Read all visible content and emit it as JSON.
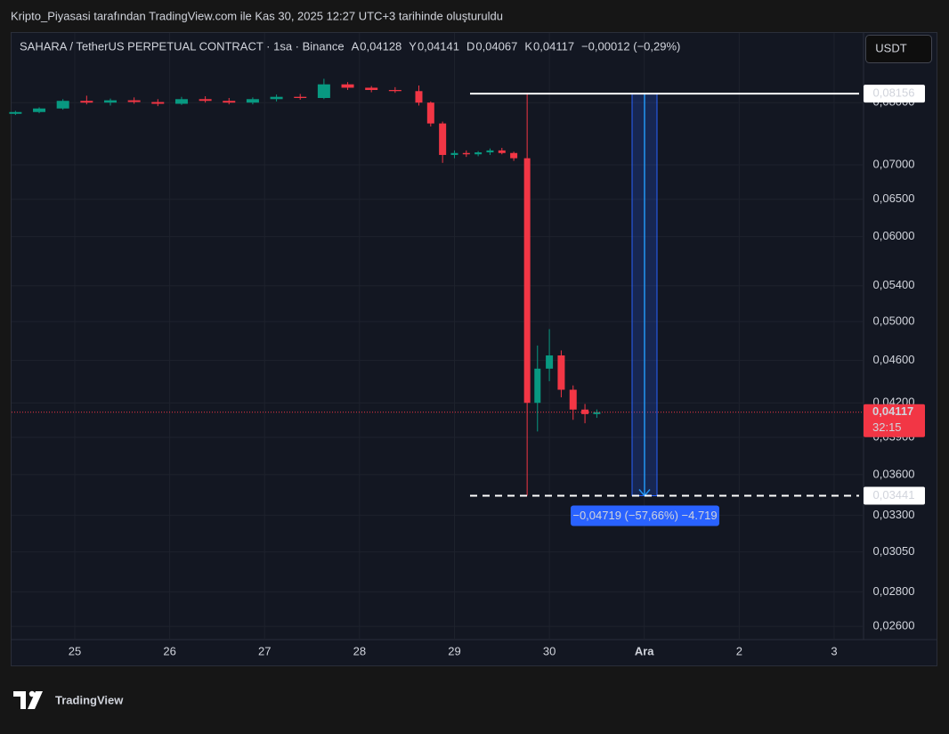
{
  "chart_data": {
    "type": "candlestick",
    "caption": "Kripto_Piyasasi tarafından TradingView.com ile Kas 30, 2025 12:27 UTC+3 tarihinde oluşturuldu",
    "title": "SAHARA / TetherUS PERPETUAL CONTRACT · 1sa · Binance",
    "legend_items": [
      {
        "label": "A",
        "value": "0,04128"
      },
      {
        "label": "Y",
        "value": "0,04141"
      },
      {
        "label": "D",
        "value": "0,04067"
      },
      {
        "label": "K",
        "value": "0,04117"
      }
    ],
    "change": "−0,00012 (−0,29%)",
    "currency": "USDT",
    "x": [
      24.375,
      24.625,
      24.875,
      25.125,
      25.375,
      25.625,
      25.875,
      26.125,
      26.375,
      26.625,
      26.875,
      27.125,
      27.375,
      27.625,
      27.875,
      28.125,
      28.375,
      28.625,
      28.75,
      28.875,
      29.0,
      29.125,
      29.25,
      29.375,
      29.5,
      29.625,
      29.766,
      29.875,
      30.0,
      30.125,
      30.25,
      30.375,
      30.5
    ],
    "open": [
      0.0781,
      0.0784,
      0.079,
      0.0803,
      0.08,
      0.0804,
      0.0801,
      0.0798,
      0.0806,
      0.0803,
      0.08,
      0.0806,
      0.081,
      0.0808,
      0.0832,
      0.0826,
      0.0822,
      0.082,
      0.08,
      0.0765,
      0.0715,
      0.0718,
      0.0716,
      0.0719,
      0.0722,
      0.0718,
      0.071,
      0.042,
      0.0452,
      0.0465,
      0.0432,
      0.0414,
      0.041
    ],
    "high": [
      0.0786,
      0.0792,
      0.0806,
      0.0812,
      0.0807,
      0.0809,
      0.0806,
      0.081,
      0.0811,
      0.0808,
      0.0809,
      0.0814,
      0.0815,
      0.0842,
      0.0836,
      0.0829,
      0.0827,
      0.083,
      0.0802,
      0.0768,
      0.0722,
      0.0722,
      0.0721,
      0.0725,
      0.0726,
      0.072,
      0.08156,
      0.0475,
      0.0492,
      0.047,
      0.0436,
      0.0419,
      0.04141
    ],
    "low": [
      0.0779,
      0.0782,
      0.0788,
      0.0797,
      0.0795,
      0.0798,
      0.0794,
      0.0796,
      0.08,
      0.0797,
      0.0797,
      0.0802,
      0.0805,
      0.0806,
      0.0822,
      0.0818,
      0.0817,
      0.0795,
      0.076,
      0.0703,
      0.071,
      0.0712,
      0.0713,
      0.0715,
      0.0716,
      0.0706,
      0.03441,
      0.0395,
      0.044,
      0.0425,
      0.0405,
      0.0402,
      0.04067
    ],
    "close": [
      0.0784,
      0.079,
      0.0803,
      0.08,
      0.0804,
      0.0801,
      0.0798,
      0.0806,
      0.0803,
      0.08,
      0.0806,
      0.081,
      0.0808,
      0.0832,
      0.0826,
      0.0822,
      0.082,
      0.08,
      0.0765,
      0.0715,
      0.0718,
      0.0716,
      0.0719,
      0.0722,
      0.0718,
      0.071,
      0.042,
      0.0452,
      0.0465,
      0.0432,
      0.0414,
      0.041,
      0.04117
    ],
    "up_color": "#089981",
    "down_color": "#f23645",
    "xlim": [
      24.334,
      33.31
    ],
    "xticks": [
      25,
      26,
      27,
      28,
      29,
      30,
      {
        "value": 31,
        "label": "Ara"
      },
      {
        "value": 32,
        "label": "2"
      },
      {
        "value": 33,
        "label": "3"
      }
    ],
    "ylim": [
      0.02527,
      0.0929
    ],
    "log_scale": true,
    "grid": true,
    "yticks": [
      {
        "value": 0.026,
        "label": "0,02600"
      },
      {
        "value": 0.028,
        "label": "0,02800"
      },
      {
        "value": 0.0305,
        "label": "0,03050"
      },
      {
        "value": 0.033,
        "label": "0,03300"
      },
      {
        "value": 0.036,
        "label": "0,03600"
      },
      {
        "value": 0.039,
        "label": "0,03900"
      },
      {
        "value": 0.042,
        "label": "0,04200"
      },
      {
        "value": 0.046,
        "label": "0,04600"
      },
      {
        "value": 0.05,
        "label": "0,05000"
      },
      {
        "value": 0.054,
        "label": "0,05400"
      },
      {
        "value": 0.06,
        "label": "0,06000"
      },
      {
        "value": 0.065,
        "label": "0,06500"
      },
      {
        "value": 0.07,
        "label": "0,07000"
      },
      {
        "value": 0.08,
        "label": "0,08000"
      }
    ],
    "price_lines": [
      {
        "value": 0.08156,
        "label": "0,08156",
        "style": "solid"
      },
      {
        "value": 0.03441,
        "label": "0,03441",
        "style": "dashed"
      }
    ],
    "last_price": {
      "value": 0.04117,
      "label": "0,04117",
      "countdown": "32:15"
    },
    "measure_label": "−0,04719 (−57,66%) −4.719",
    "logo": "TradingView"
  }
}
